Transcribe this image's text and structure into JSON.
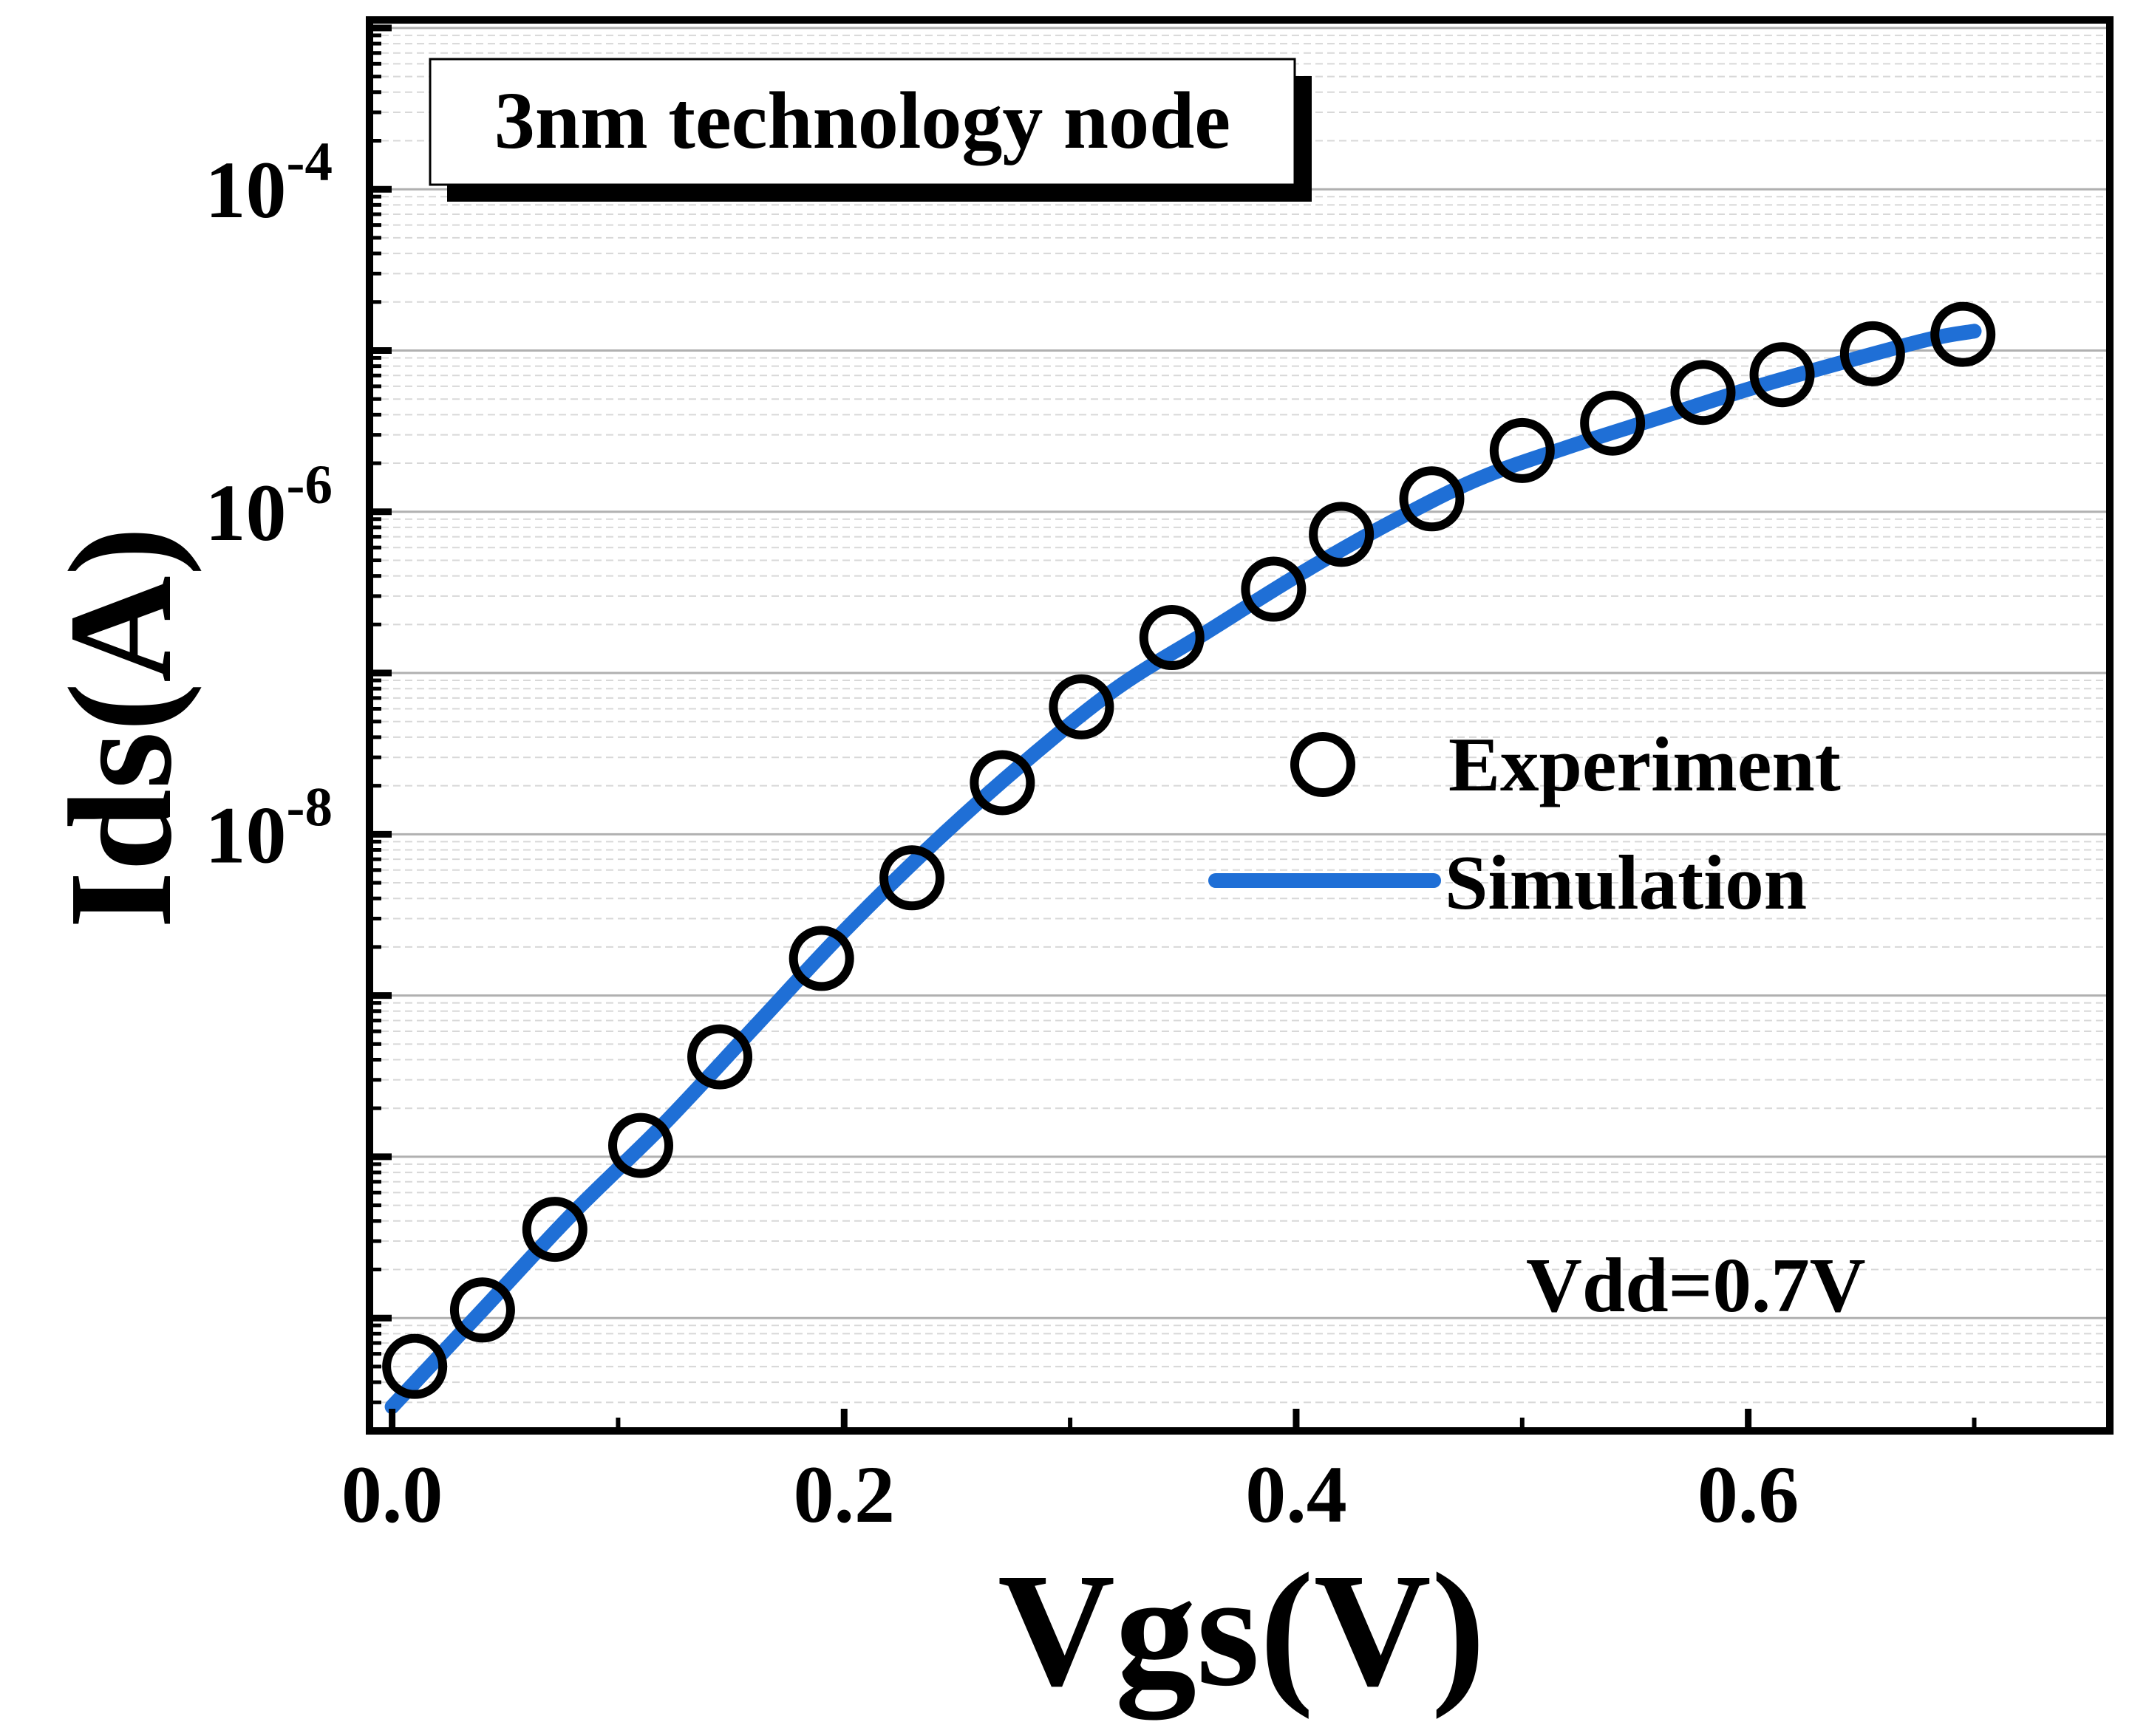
{
  "chart_data": {
    "type": "scatter",
    "title": "3nm technology node",
    "xlabel": "Vgs(V)",
    "ylabel": "Ids(A)",
    "annotation": "Vdd=0.7V",
    "xlim": [
      -0.01,
      0.76
    ],
    "ylim_log10": [
      -11.7,
      -2.95
    ],
    "y_scale": "log",
    "x_ticks": [
      {
        "value": 0.0,
        "label": "0.0"
      },
      {
        "value": 0.2,
        "label": "0.2"
      },
      {
        "value": 0.4,
        "label": "0.4"
      },
      {
        "value": 0.6,
        "label": "0.6"
      }
    ],
    "x_minor_ticks": [
      0.1,
      0.3,
      0.5,
      0.7
    ],
    "y_ticks": [
      {
        "value": -4,
        "base": "10",
        "exp": "-4"
      },
      {
        "value": -6,
        "base": "10",
        "exp": "-6"
      },
      {
        "value": -8,
        "base": "10",
        "exp": "-8"
      }
    ],
    "y_minor_ticks": [
      -3,
      -5,
      -7,
      -9
    ],
    "grid": true,
    "legend_position": "center-right",
    "series": [
      {
        "name": "Experiment",
        "marker": "open-circle",
        "color": "#000000",
        "points": [
          {
            "x": 0.01,
            "y_log10": -11.3
          },
          {
            "x": 0.04,
            "y_log10": -10.95
          },
          {
            "x": 0.072,
            "y_log10": -10.45
          },
          {
            "x": 0.11,
            "y_log10": -9.93
          },
          {
            "x": 0.145,
            "y_log10": -9.38
          },
          {
            "x": 0.19,
            "y_log10": -8.77
          },
          {
            "x": 0.23,
            "y_log10": -8.27
          },
          {
            "x": 0.27,
            "y_log10": -7.68
          },
          {
            "x": 0.305,
            "y_log10": -7.21
          },
          {
            "x": 0.345,
            "y_log10": -6.78
          },
          {
            "x": 0.39,
            "y_log10": -6.48
          },
          {
            "x": 0.42,
            "y_log10": -6.14
          },
          {
            "x": 0.46,
            "y_log10": -5.92
          },
          {
            "x": 0.5,
            "y_log10": -5.62
          },
          {
            "x": 0.54,
            "y_log10": -5.45
          },
          {
            "x": 0.58,
            "y_log10": -5.26
          },
          {
            "x": 0.615,
            "y_log10": -5.15
          },
          {
            "x": 0.655,
            "y_log10": -5.02
          },
          {
            "x": 0.695,
            "y_log10": -4.9
          }
        ]
      },
      {
        "name": "Simulation",
        "line": "solid",
        "color": "#1f6fd6",
        "points": [
          {
            "x": 0.0,
            "y_log10": -11.55
          },
          {
            "x": 0.04,
            "y_log10": -10.95
          },
          {
            "x": 0.08,
            "y_log10": -10.35
          },
          {
            "x": 0.12,
            "y_log10": -9.8
          },
          {
            "x": 0.16,
            "y_log10": -9.2
          },
          {
            "x": 0.2,
            "y_log10": -8.6
          },
          {
            "x": 0.24,
            "y_log10": -8.05
          },
          {
            "x": 0.28,
            "y_log10": -7.55
          },
          {
            "x": 0.32,
            "y_log10": -7.1
          },
          {
            "x": 0.36,
            "y_log10": -6.75
          },
          {
            "x": 0.4,
            "y_log10": -6.4
          },
          {
            "x": 0.44,
            "y_log10": -6.08
          },
          {
            "x": 0.48,
            "y_log10": -5.8
          },
          {
            "x": 0.52,
            "y_log10": -5.6
          },
          {
            "x": 0.56,
            "y_log10": -5.42
          },
          {
            "x": 0.6,
            "y_log10": -5.24
          },
          {
            "x": 0.64,
            "y_log10": -5.08
          },
          {
            "x": 0.68,
            "y_log10": -4.93
          },
          {
            "x": 0.7,
            "y_log10": -4.88
          }
        ]
      }
    ]
  },
  "colors": {
    "simulation_line": "#1f6fd6",
    "marker_stroke": "#000000",
    "frame": "#000000",
    "major_grid": "#b0b0b0",
    "minor_grid": "#d8d8d8"
  }
}
